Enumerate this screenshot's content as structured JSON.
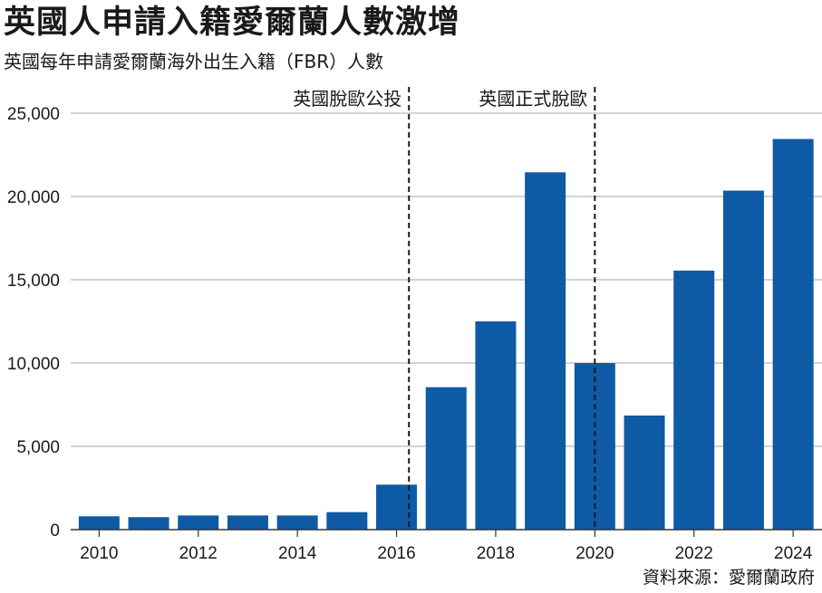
{
  "header": {
    "title": "英國人申請入籍愛爾蘭人數激增",
    "subtitle": "英國每年申請愛爾蘭海外出生入籍（FBR）人數"
  },
  "footer": {
    "source": "資料來源：愛爾蘭政府"
  },
  "chart_data": {
    "type": "bar",
    "title": "英國人申請入籍愛爾蘭人數激增",
    "subtitle": "英國每年申請愛爾蘭海外出生入籍（FBR）人數",
    "xlabel": "",
    "ylabel": "",
    "categories": [
      "2010",
      "2011",
      "2012",
      "2013",
      "2014",
      "2015",
      "2016",
      "2017",
      "2018",
      "2019",
      "2020",
      "2021",
      "2022",
      "2023",
      "2024"
    ],
    "values": [
      800,
      750,
      850,
      850,
      850,
      1050,
      2700,
      8550,
      12500,
      21450,
      10000,
      6850,
      15550,
      20350,
      23450
    ],
    "x_tick_labels": [
      "2010",
      "2012",
      "2014",
      "2016",
      "2018",
      "2020",
      "2022",
      "2024"
    ],
    "y_tick_labels": [
      "0",
      "5,000",
      "10,000",
      "15,000",
      "20,000",
      "25,000"
    ],
    "y_ticks": [
      0,
      5000,
      10000,
      15000,
      20000,
      25000
    ],
    "ylim": [
      0,
      25000
    ],
    "grid": true,
    "bar_color": "#0f5aa5",
    "annotations": [
      {
        "label": "英國脫歐公投",
        "x": 2016.25,
        "style": "dashed vertical line"
      },
      {
        "label": "英國正式脫歐",
        "x": 2020.0,
        "style": "dashed vertical line"
      }
    ]
  }
}
